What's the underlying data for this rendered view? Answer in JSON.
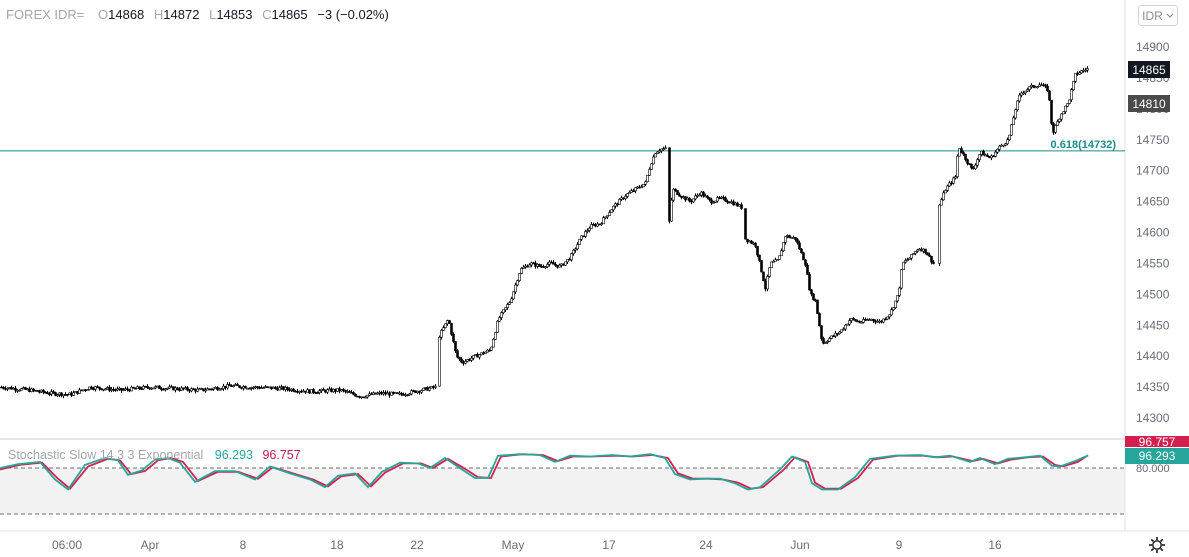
{
  "header": {
    "symbol": "FOREX IDR=",
    "o_label": "O",
    "o": "14868",
    "h_label": "H",
    "h": "14872",
    "l_label": "L",
    "l": "14853",
    "c_label": "C",
    "c": "14865",
    "change": "−3 (−0.02%)"
  },
  "currency_button": {
    "label": "IDR",
    "icon": "chevron-down-icon"
  },
  "price_badges": {
    "last": "14865",
    "other": "14810"
  },
  "fib_label": "0.618(14732)",
  "indicator": {
    "name": "Stochastic Slow 14 3 3 Exponential",
    "k_value": "96.293",
    "d_value": "96.757",
    "badge_k": "96.293",
    "badge_d": "96.757",
    "level_label": "80.000"
  },
  "colors": {
    "k_line": "#26a69a",
    "d_line": "#d5204f",
    "fib_line": "#1e8c8c",
    "candles": "#000000",
    "badge_dark": "#131722",
    "badge_grey": "#4a4a4a"
  },
  "settings_icon": "gear-icon",
  "chart_data": {
    "type": "candlestick",
    "price_axis": {
      "ticks": [
        14300,
        14350,
        14400,
        14450,
        14500,
        14550,
        14600,
        14650,
        14700,
        14750,
        14800,
        14850,
        14900
      ],
      "range": [
        14260,
        14935
      ]
    },
    "time_axis": {
      "labels": [
        "06:00",
        "Apr",
        "8",
        "18",
        "22",
        "May",
        "17",
        "24",
        "Jun",
        "9",
        "16"
      ]
    },
    "fib_level": {
      "ratio": 0.618,
      "value": 14732
    },
    "last_price": 14865,
    "price_path": [
      [
        0,
        14350
      ],
      [
        30,
        14345
      ],
      [
        50,
        14340
      ],
      [
        70,
        14338
      ],
      [
        90,
        14350
      ],
      [
        120,
        14345
      ],
      [
        150,
        14350
      ],
      [
        200,
        14345
      ],
      [
        230,
        14352
      ],
      [
        250,
        14350
      ],
      [
        280,
        14348
      ],
      [
        310,
        14343
      ],
      [
        340,
        14345
      ],
      [
        360,
        14335
      ],
      [
        380,
        14340
      ],
      [
        400,
        14338
      ],
      [
        420,
        14345
      ],
      [
        435,
        14350
      ],
      [
        438,
        14430
      ],
      [
        448,
        14460
      ],
      [
        456,
        14400
      ],
      [
        462,
        14390
      ],
      [
        475,
        14400
      ],
      [
        490,
        14410
      ],
      [
        498,
        14460
      ],
      [
        510,
        14490
      ],
      [
        520,
        14540
      ],
      [
        530,
        14550
      ],
      [
        540,
        14545
      ],
      [
        550,
        14550
      ],
      [
        560,
        14545
      ],
      [
        570,
        14560
      ],
      [
        580,
        14590
      ],
      [
        590,
        14610
      ],
      [
        600,
        14615
      ],
      [
        612,
        14640
      ],
      [
        625,
        14660
      ],
      [
        635,
        14670
      ],
      [
        645,
        14680
      ],
      [
        650,
        14710
      ],
      [
        655,
        14730
      ],
      [
        660,
        14735
      ],
      [
        666,
        14735
      ],
      [
        668,
        14600
      ],
      [
        672,
        14670
      ],
      [
        680,
        14660
      ],
      [
        690,
        14650
      ],
      [
        700,
        14665
      ],
      [
        710,
        14650
      ],
      [
        720,
        14655
      ],
      [
        730,
        14650
      ],
      [
        742,
        14640
      ],
      [
        745,
        14590
      ],
      [
        755,
        14580
      ],
      [
        765,
        14510
      ],
      [
        770,
        14550
      ],
      [
        778,
        14555
      ],
      [
        785,
        14595
      ],
      [
        795,
        14590
      ],
      [
        805,
        14550
      ],
      [
        810,
        14500
      ],
      [
        815,
        14490
      ],
      [
        822,
        14420
      ],
      [
        830,
        14430
      ],
      [
        840,
        14440
      ],
      [
        850,
        14460
      ],
      [
        860,
        14455
      ],
      [
        870,
        14460
      ],
      [
        880,
        14455
      ],
      [
        890,
        14470
      ],
      [
        898,
        14500
      ],
      [
        902,
        14550
      ],
      [
        910,
        14560
      ],
      [
        918,
        14575
      ],
      [
        925,
        14570
      ],
      [
        933,
        14550
      ],
      [
        938,
        14640
      ],
      [
        945,
        14670
      ],
      [
        955,
        14690
      ],
      [
        958,
        14740
      ],
      [
        965,
        14720
      ],
      [
        972,
        14700
      ],
      [
        980,
        14730
      ],
      [
        990,
        14720
      ],
      [
        1000,
        14740
      ],
      [
        1008,
        14750
      ],
      [
        1015,
        14800
      ],
      [
        1020,
        14825
      ],
      [
        1030,
        14835
      ],
      [
        1040,
        14840
      ],
      [
        1048,
        14830
      ],
      [
        1052,
        14760
      ],
      [
        1060,
        14790
      ],
      [
        1068,
        14810
      ],
      [
        1075,
        14855
      ],
      [
        1082,
        14862
      ],
      [
        1088,
        14865
      ]
    ],
    "stochastic": {
      "k": [
        [
          0,
          80
        ],
        [
          18,
          85
        ],
        [
          40,
          88
        ],
        [
          55,
          65
        ],
        [
          68,
          52
        ],
        [
          85,
          84
        ],
        [
          105,
          93
        ],
        [
          118,
          90
        ],
        [
          128,
          71
        ],
        [
          142,
          77
        ],
        [
          155,
          91
        ],
        [
          168,
          93
        ],
        [
          180,
          87
        ],
        [
          195,
          62
        ],
        [
          215,
          76
        ],
        [
          235,
          76
        ],
        [
          255,
          65
        ],
        [
          270,
          82
        ],
        [
          290,
          73
        ],
        [
          310,
          65
        ],
        [
          325,
          55
        ],
        [
          338,
          70
        ],
        [
          355,
          73
        ],
        [
          368,
          55
        ],
        [
          382,
          75
        ],
        [
          400,
          87
        ],
        [
          418,
          86
        ],
        [
          430,
          80
        ],
        [
          445,
          93
        ],
        [
          462,
          78
        ],
        [
          475,
          67
        ],
        [
          488,
          67
        ],
        [
          498,
          96
        ],
        [
          520,
          98
        ],
        [
          540,
          97
        ],
        [
          555,
          88
        ],
        [
          570,
          96
        ],
        [
          590,
          95
        ],
        [
          612,
          97
        ],
        [
          630,
          95
        ],
        [
          650,
          98
        ],
        [
          665,
          93
        ],
        [
          675,
          72
        ],
        [
          690,
          65
        ],
        [
          705,
          66
        ],
        [
          720,
          66
        ],
        [
          735,
          60
        ],
        [
          748,
          52
        ],
        [
          760,
          55
        ],
        [
          780,
          78
        ],
        [
          792,
          95
        ],
        [
          805,
          88
        ],
        [
          812,
          60
        ],
        [
          822,
          52
        ],
        [
          838,
          52
        ],
        [
          855,
          68
        ],
        [
          870,
          92
        ],
        [
          895,
          96
        ],
        [
          920,
          97
        ],
        [
          935,
          94
        ],
        [
          950,
          96
        ],
        [
          970,
          88
        ],
        [
          980,
          93
        ],
        [
          995,
          85
        ],
        [
          1008,
          92
        ],
        [
          1025,
          94
        ],
        [
          1040,
          96
        ],
        [
          1052,
          83
        ],
        [
          1060,
          82
        ],
        [
          1075,
          89
        ],
        [
          1088,
          96.293
        ]
      ],
      "d": [
        [
          0,
          78
        ],
        [
          20,
          84
        ],
        [
          42,
          87
        ],
        [
          58,
          66
        ],
        [
          70,
          53
        ],
        [
          88,
          82
        ],
        [
          108,
          92
        ],
        [
          120,
          90
        ],
        [
          131,
          72
        ],
        [
          145,
          76
        ],
        [
          158,
          90
        ],
        [
          171,
          93
        ],
        [
          183,
          88
        ],
        [
          198,
          63
        ],
        [
          218,
          75
        ],
        [
          238,
          75
        ],
        [
          258,
          66
        ],
        [
          273,
          81
        ],
        [
          293,
          73
        ],
        [
          313,
          65
        ],
        [
          328,
          56
        ],
        [
          341,
          69
        ],
        [
          358,
          72
        ],
        [
          371,
          56
        ],
        [
          385,
          74
        ],
        [
          403,
          86
        ],
        [
          421,
          86
        ],
        [
          433,
          80
        ],
        [
          448,
          92
        ],
        [
          465,
          79
        ],
        [
          478,
          68
        ],
        [
          491,
          67
        ],
        [
          501,
          95
        ],
        [
          523,
          98
        ],
        [
          543,
          97
        ],
        [
          558,
          89
        ],
        [
          573,
          95
        ],
        [
          593,
          95
        ],
        [
          615,
          96
        ],
        [
          633,
          95
        ],
        [
          653,
          97
        ],
        [
          668,
          93
        ],
        [
          678,
          73
        ],
        [
          693,
          66
        ],
        [
          708,
          66
        ],
        [
          723,
          65
        ],
        [
          738,
          61
        ],
        [
          751,
          53
        ],
        [
          763,
          55
        ],
        [
          783,
          77
        ],
        [
          795,
          94
        ],
        [
          808,
          88
        ],
        [
          815,
          61
        ],
        [
          825,
          53
        ],
        [
          841,
          53
        ],
        [
          858,
          67
        ],
        [
          873,
          91
        ],
        [
          898,
          96
        ],
        [
          923,
          96
        ],
        [
          938,
          94
        ],
        [
          953,
          95
        ],
        [
          973,
          89
        ],
        [
          983,
          92
        ],
        [
          998,
          86
        ],
        [
          1011,
          91
        ],
        [
          1028,
          94
        ],
        [
          1043,
          95
        ],
        [
          1055,
          84
        ],
        [
          1063,
          82
        ],
        [
          1078,
          88
        ],
        [
          1088,
          96.757
        ]
      ],
      "levels": [
        80,
        20
      ]
    }
  }
}
